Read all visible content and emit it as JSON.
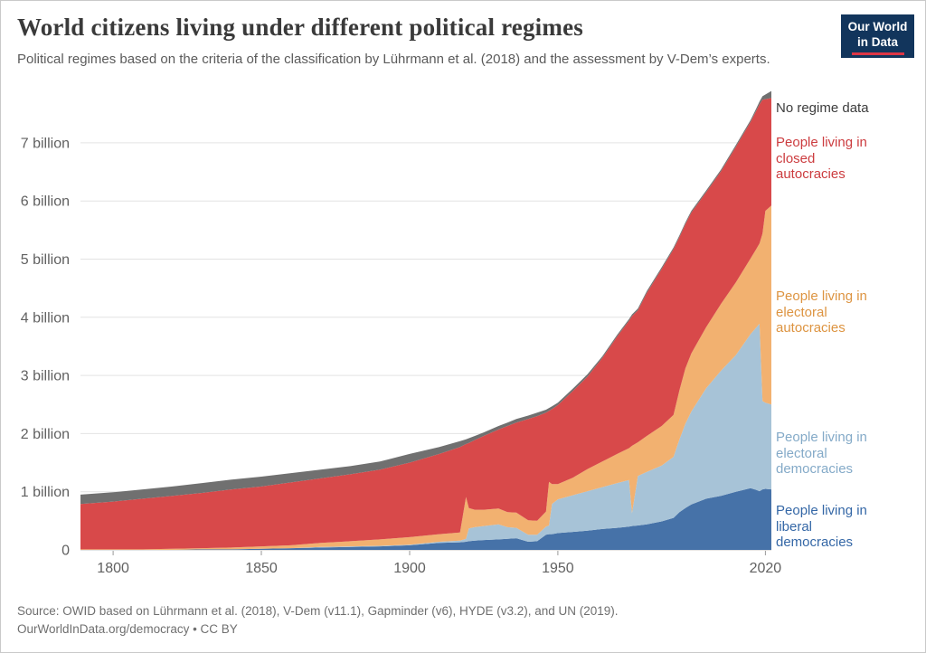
{
  "header": {
    "title": "World citizens living under different political regimes",
    "subtitle": "Political regimes based on the criteria of the classification by Lührmann et al. (2018) and the assessment by V-Dem’s experts.",
    "logo": {
      "line1": "Our World",
      "line2": "in Data",
      "bg_color": "#12355c",
      "accent_color": "#dc3545"
    }
  },
  "chart_data": {
    "type": "area",
    "stacked": true,
    "title": "World citizens living under different political regimes",
    "xlabel": "",
    "ylabel": "",
    "grid": true,
    "legend_position": "right",
    "ylim": [
      0,
      7.9
    ],
    "yticks": [
      {
        "value": 0,
        "label": "0"
      },
      {
        "value": 1,
        "label": "1 billion"
      },
      {
        "value": 2,
        "label": "2 billion"
      },
      {
        "value": 3,
        "label": "3 billion"
      },
      {
        "value": 4,
        "label": "4 billion"
      },
      {
        "value": 5,
        "label": "5 billion"
      },
      {
        "value": 6,
        "label": "6 billion"
      },
      {
        "value": 7,
        "label": "7 billion"
      }
    ],
    "xticks": [
      {
        "value": 1800,
        "label": "1800"
      },
      {
        "value": 1850,
        "label": "1850"
      },
      {
        "value": 1900,
        "label": "1900"
      },
      {
        "value": 1950,
        "label": "1950"
      },
      {
        "value": 2020,
        "label": "2020"
      }
    ],
    "x": [
      1789,
      1800,
      1810,
      1820,
      1830,
      1840,
      1850,
      1860,
      1870,
      1880,
      1890,
      1900,
      1910,
      1917,
      1919,
      1920,
      1922,
      1925,
      1930,
      1933,
      1936,
      1940,
      1943,
      1946,
      1947,
      1948,
      1950,
      1955,
      1960,
      1965,
      1970,
      1974,
      1975,
      1977,
      1980,
      1985,
      1989,
      1991,
      1993,
      1995,
      2000,
      2005,
      2010,
      2015,
      2017,
      2018,
      2019,
      2020,
      2022
    ],
    "units": "billions of people",
    "series": [
      {
        "name": "People living in liberal democracies",
        "fill": "#4672a8",
        "label_color": "#3467a6",
        "values": [
          0.0,
          0.0,
          0.0,
          0.0,
          0.01,
          0.01,
          0.02,
          0.03,
          0.04,
          0.05,
          0.06,
          0.08,
          0.12,
          0.13,
          0.14,
          0.15,
          0.16,
          0.17,
          0.18,
          0.19,
          0.2,
          0.14,
          0.15,
          0.26,
          0.27,
          0.27,
          0.29,
          0.31,
          0.33,
          0.36,
          0.38,
          0.4,
          0.41,
          0.42,
          0.44,
          0.49,
          0.55,
          0.65,
          0.72,
          0.78,
          0.88,
          0.93,
          1.0,
          1.06,
          1.03,
          1.01,
          1.04,
          1.05,
          1.04
        ]
      },
      {
        "name": "People living in electoral democracies",
        "fill": "#a7c3d7",
        "label_color": "#84aac8",
        "values": [
          0.0,
          0.0,
          0.0,
          0.0,
          0.0,
          0.0,
          0.0,
          0.0,
          0.01,
          0.01,
          0.01,
          0.01,
          0.02,
          0.03,
          0.05,
          0.22,
          0.23,
          0.24,
          0.26,
          0.2,
          0.18,
          0.12,
          0.11,
          0.14,
          0.15,
          0.52,
          0.58,
          0.63,
          0.68,
          0.72,
          0.77,
          0.8,
          0.22,
          0.85,
          0.9,
          0.96,
          1.05,
          1.25,
          1.45,
          1.6,
          1.9,
          2.15,
          2.35,
          2.65,
          2.8,
          2.88,
          1.52,
          1.48,
          1.46
        ]
      },
      {
        "name": "People living in electoral autocracies",
        "fill": "#f2b170",
        "label_color": "#dd9441",
        "values": [
          0.01,
          0.01,
          0.01,
          0.02,
          0.02,
          0.03,
          0.04,
          0.05,
          0.07,
          0.09,
          0.11,
          0.13,
          0.13,
          0.14,
          0.72,
          0.35,
          0.3,
          0.28,
          0.27,
          0.26,
          0.26,
          0.25,
          0.24,
          0.26,
          0.75,
          0.34,
          0.26,
          0.3,
          0.38,
          0.44,
          0.5,
          0.55,
          1.16,
          0.58,
          0.62,
          0.68,
          0.72,
          0.85,
          0.95,
          1.0,
          1.05,
          1.15,
          1.25,
          1.3,
          1.35,
          1.38,
          2.88,
          3.3,
          3.42
        ]
      },
      {
        "name": "People living in closed autocracies",
        "fill": "#d8494a",
        "label_color": "#cc3c3f",
        "values": [
          0.78,
          0.82,
          0.87,
          0.91,
          0.95,
          1.0,
          1.03,
          1.08,
          1.11,
          1.15,
          1.2,
          1.28,
          1.38,
          1.47,
          0.91,
          1.12,
          1.2,
          1.27,
          1.36,
          1.48,
          1.55,
          1.74,
          1.8,
          1.7,
          1.22,
          1.29,
          1.36,
          1.49,
          1.59,
          1.78,
          2.02,
          2.19,
          2.23,
          2.27,
          2.46,
          2.7,
          2.85,
          2.63,
          2.48,
          2.42,
          2.32,
          2.28,
          2.33,
          2.35,
          2.38,
          2.39,
          2.3,
          1.92,
          1.85
        ]
      },
      {
        "name": "No regime data",
        "fill": "#707070",
        "label_color": "#3d3d3d",
        "values": [
          0.16,
          0.16,
          0.16,
          0.16,
          0.17,
          0.17,
          0.17,
          0.16,
          0.15,
          0.14,
          0.14,
          0.15,
          0.12,
          0.1,
          0.08,
          0.08,
          0.07,
          0.06,
          0.06,
          0.06,
          0.06,
          0.06,
          0.06,
          0.05,
          0.05,
          0.05,
          0.04,
          0.04,
          0.04,
          0.03,
          0.03,
          0.03,
          0.03,
          0.03,
          0.03,
          0.03,
          0.03,
          0.03,
          0.03,
          0.03,
          0.03,
          0.03,
          0.03,
          0.03,
          0.04,
          0.05,
          0.06,
          0.08,
          0.12
        ]
      }
    ]
  },
  "footer": {
    "source": "Source: OWID based on Lührmann et al. (2018), V-Dem (v11.1), Gapminder (v6), HYDE (v3.2), and UN (2019).",
    "license": "OurWorldInData.org/democracy • CC BY"
  }
}
